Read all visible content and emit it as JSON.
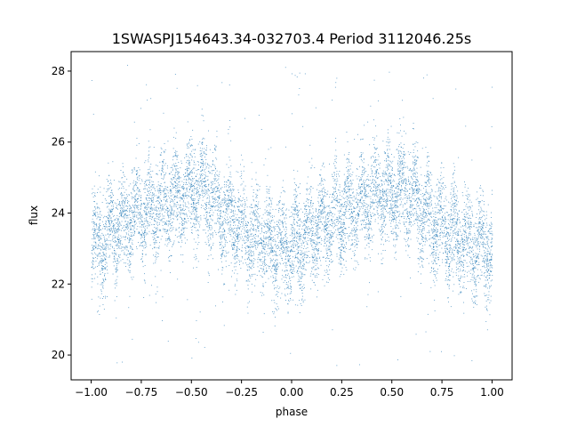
{
  "chart_data": {
    "type": "scatter",
    "title": "1SWASPJ154643.34-032703.4 Period 3112046.25s",
    "xlabel": "phase",
    "ylabel": "flux",
    "xlim": [
      -1.1,
      1.1
    ],
    "ylim": [
      19.3,
      28.55
    ],
    "x_ticks": [
      -1.0,
      -0.75,
      -0.5,
      -0.25,
      0.0,
      0.25,
      0.5,
      0.75,
      1.0
    ],
    "x_tick_labels": [
      "−1.00",
      "−0.75",
      "−0.50",
      "−0.25",
      "0.00",
      "0.25",
      "0.50",
      "0.75",
      "1.00"
    ],
    "y_ticks": [
      20,
      22,
      24,
      26,
      28
    ],
    "y_tick_labels": [
      "20",
      "22",
      "24",
      "26",
      "28"
    ],
    "grid": false,
    "legend": "none",
    "marker_color": "#1f77b4",
    "x_range": [
      -1.0,
      1.0
    ],
    "series": [
      {
        "profile": {
          "phase": [
            -1.0,
            -0.9,
            -0.8,
            -0.7,
            -0.6,
            -0.5,
            -0.45,
            -0.4,
            -0.3,
            -0.2,
            -0.1,
            0.0,
            0.1,
            0.2,
            0.3,
            0.4,
            0.5,
            0.55,
            0.6,
            0.7,
            0.8,
            0.9,
            1.0
          ],
          "median_flux": [
            23.0,
            23.5,
            23.9,
            24.1,
            24.4,
            24.6,
            24.7,
            24.4,
            23.8,
            23.4,
            23.1,
            23.0,
            23.5,
            23.9,
            24.1,
            24.4,
            24.6,
            24.7,
            24.4,
            23.8,
            23.4,
            23.1,
            23.0
          ],
          "spread": 1.2
        }
      }
    ]
  }
}
